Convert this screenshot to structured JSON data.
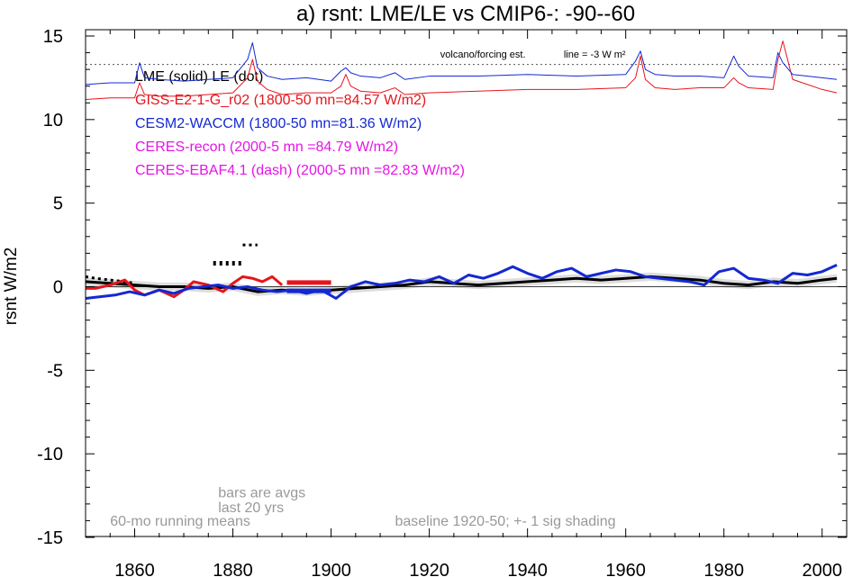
{
  "chart_data": {
    "type": "line",
    "title": "a) rsnt: LME/LE vs CMIP6-: -90--60",
    "ylabel": "rsnt W/m2",
    "xlabel": "",
    "xlim": [
      1850,
      2005
    ],
    "ylim": [
      -15,
      15
    ],
    "x_ticks": [
      1860,
      1880,
      1900,
      1920,
      1940,
      1960,
      1980,
      2000
    ],
    "y_ticks": [
      -15,
      -10,
      -5,
      0,
      5,
      10,
      15
    ],
    "grid": false,
    "legend_placement": "top-left",
    "legend": [
      {
        "text": "LME (solid)   LE (dot)",
        "color": "#000000"
      },
      {
        "text": "GISS-E2-1-G_r02 (1800-50 mn=84.57 W/m2)",
        "color": "#e8141c"
      },
      {
        "text": "CESM2-WACCM (1800-50 mn=81.36 W/m2)",
        "color": "#1428d2"
      },
      {
        "text": "CERES-recon (2000-5 mn =84.79 W/m2)",
        "color": "#e614e6"
      },
      {
        "text": "CERES-EBAF4.1 (dash) (2000-5 mn =82.83 W/m2)",
        "color": "#e614e6"
      }
    ],
    "annotations": [
      {
        "id": "volcano",
        "text": "volcano/forcing est.",
        "x": 1865,
        "y": 13.7
      },
      {
        "id": "line",
        "text": "line = -3 W m²",
        "x": 1874,
        "y": 13.7
      },
      {
        "id": "bars1",
        "text": "bars are avgs",
        "x": 1877,
        "y": -12.6
      },
      {
        "id": "bars2",
        "text": "last 20 yrs",
        "x": 1877,
        "y": -13.5
      },
      {
        "id": "running",
        "text": "60-mo running means",
        "x": 1855,
        "y": -14.3
      },
      {
        "id": "baseline",
        "text": "baseline 1920-50; +- 1 sig shading",
        "x": 1913,
        "y": -14.3
      }
    ],
    "volcano_line_y": 13.3,
    "series": [
      {
        "name": "LME",
        "color": "#000000",
        "style": "solid",
        "x": [
          1850,
          1855,
          1860,
          1865,
          1870,
          1875,
          1880,
          1885,
          1890,
          1895,
          1900,
          1905,
          1910,
          1915,
          1920,
          1925,
          1930,
          1935,
          1940,
          1945,
          1950,
          1955,
          1960,
          1965,
          1970,
          1975,
          1980,
          1985,
          1990,
          1995,
          2000,
          2003
        ],
        "y": [
          0.3,
          0.2,
          0.1,
          0.0,
          0.0,
          -0.1,
          0.0,
          -0.3,
          -0.2,
          -0.3,
          -0.2,
          -0.1,
          0.0,
          0.1,
          0.3,
          0.2,
          0.1,
          0.2,
          0.3,
          0.4,
          0.5,
          0.4,
          0.5,
          0.6,
          0.5,
          0.4,
          0.2,
          0.1,
          0.3,
          0.2,
          0.4,
          0.5
        ]
      },
      {
        "name": "LE",
        "color": "#000000",
        "style": "dot",
        "x": [
          1850,
          1852,
          1855,
          1858,
          1860
        ],
        "y": [
          0.6,
          0.5,
          0.4,
          0.3,
          0.2
        ]
      },
      {
        "name": "GISS-E2-1-G_r02",
        "color": "#e8141c",
        "style": "solid",
        "x": [
          1850,
          1852,
          1855,
          1858,
          1860,
          1862,
          1865,
          1868,
          1870,
          1872,
          1875,
          1878,
          1880,
          1882,
          1884,
          1886,
          1888,
          1890
        ],
        "y": [
          -0.1,
          -0.1,
          0.1,
          0.4,
          -0.2,
          -0.5,
          -0.2,
          -0.6,
          -0.2,
          0.3,
          0.1,
          -0.3,
          0.2,
          0.6,
          0.5,
          0.3,
          0.6,
          0.1
        ]
      },
      {
        "name": "CESM2-WACCM",
        "color": "#1428d2",
        "style": "solid",
        "x": [
          1850,
          1853,
          1856,
          1859,
          1862,
          1865,
          1868,
          1871,
          1874,
          1877,
          1880,
          1883,
          1886,
          1889,
          1892,
          1895,
          1898,
          1901,
          1904,
          1907,
          1910,
          1913,
          1916,
          1919,
          1922,
          1925,
          1928,
          1931,
          1934,
          1937,
          1940,
          1943,
          1946,
          1949,
          1952,
          1955,
          1958,
          1961,
          1964,
          1967,
          1970,
          1973,
          1976,
          1979,
          1982,
          1985,
          1988,
          1991,
          1994,
          1997,
          2000,
          2003
        ],
        "y": [
          -0.7,
          -0.6,
          -0.5,
          -0.3,
          -0.5,
          -0.2,
          -0.4,
          -0.1,
          0.0,
          0.1,
          -0.1,
          0.0,
          -0.2,
          -0.3,
          -0.2,
          -0.4,
          -0.2,
          -0.7,
          0.0,
          0.3,
          0.1,
          0.2,
          0.4,
          0.3,
          0.6,
          0.2,
          0.7,
          0.5,
          0.8,
          1.2,
          0.8,
          0.5,
          0.9,
          1.1,
          0.6,
          0.8,
          1.0,
          0.9,
          0.6,
          0.5,
          0.4,
          0.3,
          0.1,
          0.9,
          1.1,
          0.5,
          0.4,
          0.2,
          0.8,
          0.7,
          0.9,
          1.3
        ]
      },
      {
        "name": "GISS-E2-1-G_r02 (top)",
        "color": "#e8141c",
        "style": "solid",
        "x": [
          1850,
          1855,
          1860,
          1861,
          1862,
          1865,
          1870,
          1875,
          1880,
          1883,
          1884,
          1885,
          1887,
          1890,
          1895,
          1900,
          1902,
          1903,
          1904,
          1906,
          1910,
          1913,
          1915,
          1920,
          1930,
          1940,
          1950,
          1960,
          1962,
          1963,
          1964,
          1966,
          1970,
          1975,
          1980,
          1982,
          1983,
          1985,
          1990,
          1991,
          1992,
          1994,
          2000,
          2003
        ],
        "y": [
          11.2,
          11.3,
          11.3,
          12.2,
          11.5,
          11.4,
          11.4,
          11.5,
          11.6,
          12.5,
          13.6,
          12.3,
          11.8,
          11.5,
          11.6,
          11.6,
          12.0,
          12.7,
          12.0,
          11.7,
          11.6,
          11.9,
          11.5,
          11.6,
          11.7,
          11.8,
          11.8,
          11.9,
          12.5,
          13.8,
          12.4,
          11.9,
          11.8,
          11.9,
          11.9,
          12.5,
          12.2,
          11.9,
          11.8,
          13.6,
          14.7,
          12.4,
          11.8,
          11.6
        ]
      },
      {
        "name": "CESM2-WACCM (top)",
        "color": "#1428d2",
        "style": "solid",
        "x": [
          1850,
          1855,
          1860,
          1861,
          1862,
          1865,
          1870,
          1875,
          1880,
          1883,
          1884,
          1885,
          1887,
          1890,
          1895,
          1900,
          1902,
          1903,
          1904,
          1906,
          1910,
          1913,
          1915,
          1920,
          1930,
          1940,
          1950,
          1960,
          1962,
          1963,
          1964,
          1966,
          1970,
          1975,
          1980,
          1982,
          1983,
          1985,
          1990,
          1991,
          1992,
          1994,
          2000,
          2003
        ],
        "y": [
          12.1,
          12.2,
          12.2,
          13.4,
          12.5,
          12.4,
          12.3,
          12.4,
          12.5,
          13.6,
          14.6,
          13.1,
          12.6,
          12.4,
          12.5,
          12.3,
          12.9,
          13.1,
          12.8,
          12.6,
          12.5,
          12.8,
          12.4,
          12.6,
          12.6,
          12.7,
          12.6,
          12.7,
          13.5,
          14.1,
          13.0,
          12.7,
          12.6,
          12.6,
          12.5,
          13.8,
          13.2,
          12.6,
          12.5,
          14.0,
          13.4,
          12.7,
          12.5,
          12.4
        ]
      }
    ],
    "bars": [
      {
        "name": "GISS-E2-1-G_r02 bar",
        "color": "#e8141c",
        "x": [
          1891,
          1900
        ],
        "y": 0.25
      },
      {
        "name": "CESM2-WACCM bar",
        "color": "#1428d2",
        "x": [
          1891,
          1900
        ],
        "y": -0.25
      },
      {
        "name": "LME bar",
        "color": "#000000",
        "x": [
          1876,
          1882
        ],
        "y": 1.4
      },
      {
        "name": "LE bar",
        "color": "#000000",
        "x": [
          1882,
          1885
        ],
        "y": 2.5
      }
    ]
  }
}
